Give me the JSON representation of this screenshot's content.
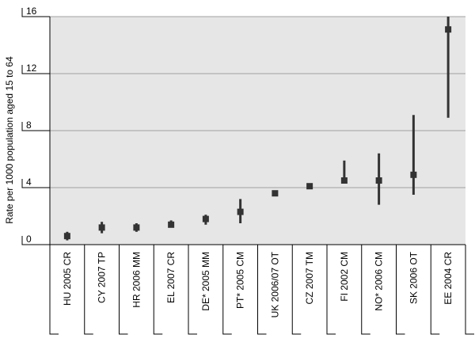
{
  "chart_data": {
    "type": "scatter",
    "ylabel": "Rate per 1000 population aged 15 to 64",
    "ylim": [
      0,
      16
    ],
    "yticks": [
      0,
      4,
      8,
      12,
      16
    ],
    "grid": true,
    "colors": {
      "plot_bg": "#e6e6e6",
      "marker": "#333333",
      "grid": "#a0a0a0"
    },
    "categories": [
      "HU 2005 CR",
      "CY 2007 TP",
      "HR 2006 MM",
      "EL 2007 CR",
      "DE* 2005 MM",
      "PT* 2005 CM",
      "UK 2006/07 OT",
      "CZ 2007 TM",
      "FI 2002 CM",
      "NO* 2006 CM",
      "SK 2006 OT",
      "EE 2004 CR"
    ],
    "values": [
      0.6,
      1.2,
      1.2,
      1.4,
      1.8,
      2.3,
      3.6,
      4.1,
      4.5,
      4.5,
      4.9,
      15.1
    ],
    "lower": [
      0.3,
      0.8,
      0.9,
      1.2,
      1.4,
      1.5,
      3.5,
      4.0,
      4.3,
      2.8,
      3.5,
      8.9
    ],
    "upper": [
      0.9,
      1.6,
      1.5,
      1.7,
      2.1,
      3.2,
      3.8,
      4.2,
      5.9,
      6.4,
      9.1,
      16.0
    ]
  }
}
